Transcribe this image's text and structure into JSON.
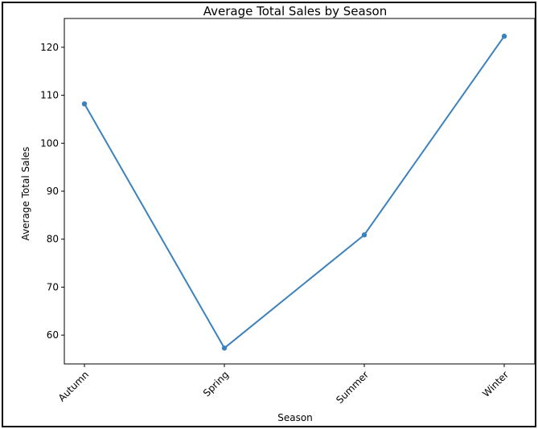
{
  "chart_data": {
    "type": "line",
    "title": "Average Total Sales by Season",
    "xlabel": "Season",
    "ylabel": "Average Total Sales",
    "categories": [
      "Autumn",
      "Spring",
      "Summer",
      "Winter"
    ],
    "series": [
      {
        "values": [
          108.2,
          57.3,
          80.9,
          122.3
        ],
        "color": "#3b81bd"
      }
    ],
    "ylim": [
      54,
      126
    ],
    "yticks": [
      60,
      70,
      80,
      90,
      100,
      110,
      120
    ],
    "grid": false,
    "xtick_rotation": 45
  }
}
